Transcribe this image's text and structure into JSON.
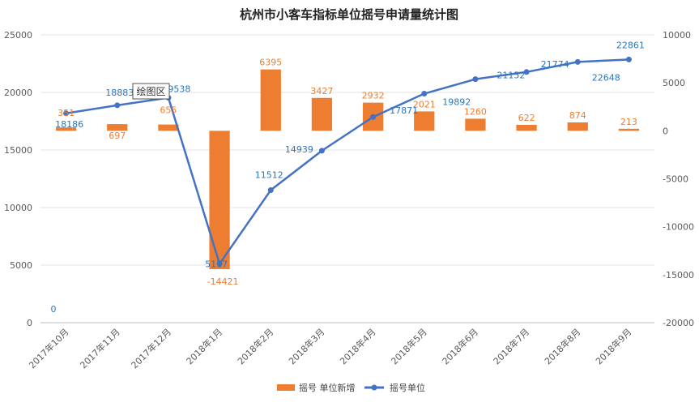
{
  "chart_data": {
    "type": "bar+line",
    "title": "杭州市小客车指标单位摇号申请量统计图",
    "categories": [
      "2017年10月",
      "2017年11月",
      "2017年12月",
      "2018年1月",
      "2018年2月",
      "2018年3月",
      "2018年4月",
      "2018年5月",
      "2018年6月",
      "2018年7月",
      "2018年8月",
      "2018年9月"
    ],
    "series": [
      {
        "name": "摇号 单位新增",
        "type": "bar",
        "axis": "right",
        "color": "#ED7D31",
        "values": [
          351,
          697,
          655,
          -14421,
          6395,
          3427,
          2932,
          2021,
          1260,
          622,
          874,
          213
        ],
        "labels": [
          "351",
          "697",
          "655",
          "-14421",
          "6395",
          "3427",
          "2932",
          "2021",
          "1260",
          "622",
          "874",
          "213"
        ]
      },
      {
        "name": "摇号单位",
        "type": "line",
        "axis": "left",
        "color": "#4472C4",
        "values": [
          18186,
          18883,
          19538,
          5117,
          11512,
          14939,
          17871,
          19892,
          21152,
          21774,
          22648,
          22861
        ],
        "labels": [
          "18186",
          "18883",
          "19538",
          "5117",
          "11512",
          "14939",
          "17871",
          "19892",
          "21152",
          "21774",
          "22648",
          "22861"
        ]
      }
    ],
    "left_axis": {
      "min": 0,
      "max": 25000,
      "ticks": [
        "0",
        "5000",
        "10000",
        "15000",
        "20000",
        "25000"
      ]
    },
    "right_axis": {
      "min": -20000,
      "max": 10000,
      "ticks": [
        "-20000",
        "-15000",
        "-10000",
        "-5000",
        "0",
        "5000",
        "10000"
      ]
    },
    "extra_label": "0",
    "tooltip": "绘图区",
    "grid": true,
    "legend_position": "bottom"
  }
}
